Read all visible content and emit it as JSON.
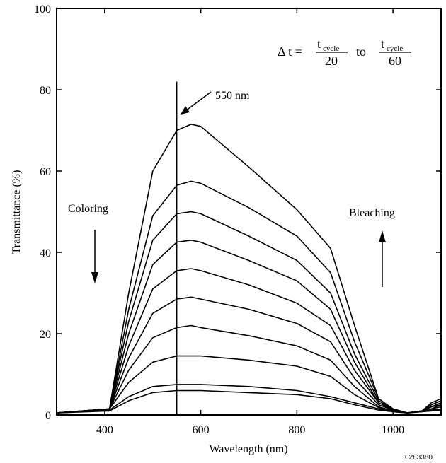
{
  "chart_data": {
    "type": "line",
    "title": "",
    "xlabel": "Wavelength (nm)",
    "ylabel": "Transmittance (%)",
    "xlim": [
      300,
      1100
    ],
    "ylim": [
      0,
      100
    ],
    "xticks": [
      400,
      600,
      800,
      1000
    ],
    "yticks": [
      0,
      20,
      40,
      60,
      80,
      100
    ],
    "grid": false,
    "marker_line": {
      "x": 550,
      "label": "550 nm"
    },
    "annotations": {
      "coloring": "Coloring",
      "bleaching": "Bleaching",
      "delta_prefix": "Δ t =",
      "frac1_num": "t",
      "frac1_sub": "cycle",
      "frac1_den": "20",
      "connector": "to",
      "frac2_num": "t",
      "frac2_sub": "cycle",
      "frac2_den": "60"
    },
    "figure_id": "0283380",
    "x": [
      300,
      410,
      450,
      500,
      550,
      580,
      600,
      700,
      800,
      870,
      920,
      970,
      1000,
      1030,
      1060,
      1080,
      1100
    ],
    "series": [
      {
        "values": [
          0.5,
          1.5,
          30,
          60,
          70,
          71.5,
          71,
          61,
          50.5,
          41,
          22,
          4,
          1.5,
          0.5,
          1,
          3,
          4
        ]
      },
      {
        "values": [
          0.5,
          1.5,
          26,
          49,
          56.5,
          57.5,
          57,
          51,
          44,
          35,
          18,
          4,
          1.5,
          0.5,
          1,
          2.5,
          3.5
        ]
      },
      {
        "values": [
          0.5,
          1.5,
          23,
          43,
          49.5,
          50,
          49.5,
          44,
          38,
          30,
          15,
          3.5,
          1.5,
          0.5,
          1,
          2.5,
          3.5
        ]
      },
      {
        "values": [
          0.5,
          1.5,
          20,
          37,
          42.5,
          43,
          42.5,
          38,
          33,
          26,
          13,
          3,
          1.5,
          0.5,
          1,
          2,
          3
        ]
      },
      {
        "values": [
          0.5,
          1.5,
          17,
          31,
          35.5,
          36,
          35.5,
          32,
          27.5,
          22,
          11,
          3,
          1.2,
          0.5,
          1,
          2,
          3
        ]
      },
      {
        "values": [
          0.5,
          1.5,
          14,
          25,
          28.5,
          29,
          28.5,
          26,
          22.5,
          18,
          9,
          2.5,
          1.2,
          0.5,
          1,
          2,
          2.5
        ]
      },
      {
        "values": [
          0.5,
          1.5,
          11,
          19,
          21.5,
          22,
          21.5,
          19.5,
          17,
          13.5,
          7,
          2,
          1,
          0.5,
          1,
          1.5,
          2.5
        ]
      },
      {
        "values": [
          0.5,
          1.5,
          8,
          13,
          14.5,
          14.5,
          14.5,
          13.5,
          12,
          9.5,
          5,
          1.8,
          1,
          0.5,
          1,
          1.5,
          2
        ]
      },
      {
        "values": [
          0.5,
          1.2,
          4.5,
          7,
          7.5,
          7.5,
          7.5,
          7,
          6,
          4.5,
          3,
          1.5,
          0.8,
          0.5,
          0.8,
          1.2,
          1.5
        ]
      },
      {
        "values": [
          0.5,
          1,
          3.5,
          5.5,
          6,
          6,
          6,
          5.5,
          5,
          4,
          2.5,
          1.2,
          0.8,
          0.5,
          0.8,
          1,
          1.2
        ]
      }
    ]
  }
}
